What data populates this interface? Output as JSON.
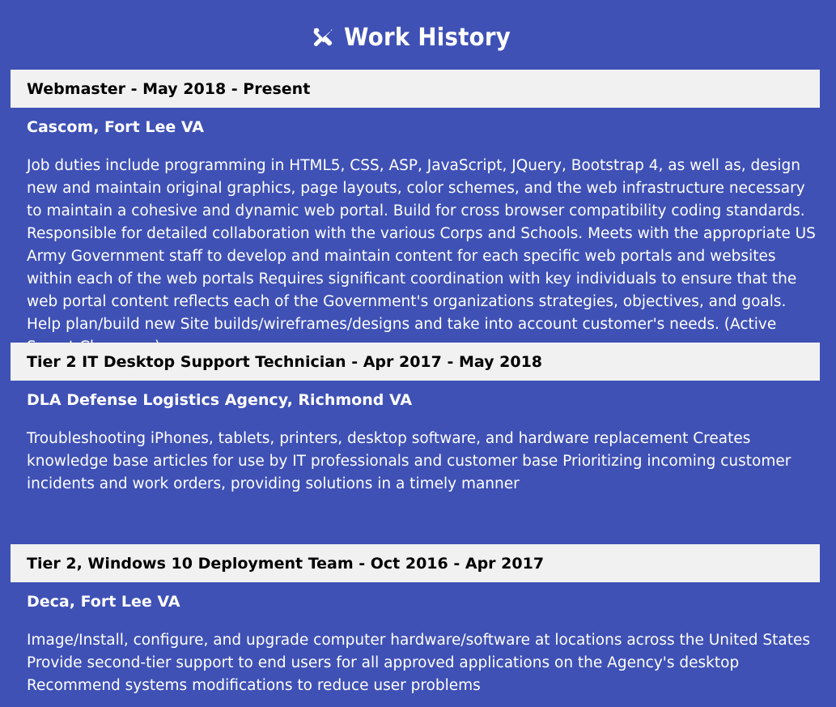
{
  "section": {
    "title": "Work History",
    "icon": "tools-icon"
  },
  "jobs": [
    {
      "header": "Webmaster - May 2018 - Present",
      "company": "Cascom, Fort Lee VA",
      "description": "Job duties include programming in HTML5, CSS, ASP, JavaScript, JQuery, Bootstrap 4, as well as, design new and maintain original graphics, page layouts, color schemes, and the web infrastructure necessary to maintain a cohesive and dynamic web portal. Build for cross browser compatibility coding standards. Responsible for detailed collaboration with the various Corps and Schools. Meets with the appropriate US Army Government staff to develop and maintain content for each specific web portals and websites within each of the web portals Requires significant coordination with key individuals to ensure that the web portal content reflects each of the Government's organizations strategies, objectives, and goals. Help plan/build new Site builds/wireframes/designs and take into account customer's needs. (Active Secret Clearance)"
    },
    {
      "header": "Tier 2 IT Desktop Support Technician - Apr 2017 - May 2018",
      "company": "DLA Defense Logistics Agency, Richmond VA",
      "description": "Troubleshooting iPhones, tablets, printers, desktop software, and hardware replacement Creates knowledge base articles for use by IT professionals and customer base Prioritizing incoming customer incidents and work orders, providing solutions in a timely manner"
    },
    {
      "header": "Tier 2, Windows 10 Deployment Team - Oct 2016 - Apr 2017",
      "company": "Deca, Fort Lee VA",
      "description": "Image/Install, configure, and upgrade computer hardware/software at locations across the United States Provide second-tier support to end users for all approved applications on the Agency's desktop Recommend systems modifications to reduce user problems"
    }
  ],
  "colors": {
    "background": "#3f51b5",
    "header_bar": "#f1f1f1",
    "text": "#ffffff",
    "header_text": "#000000"
  }
}
